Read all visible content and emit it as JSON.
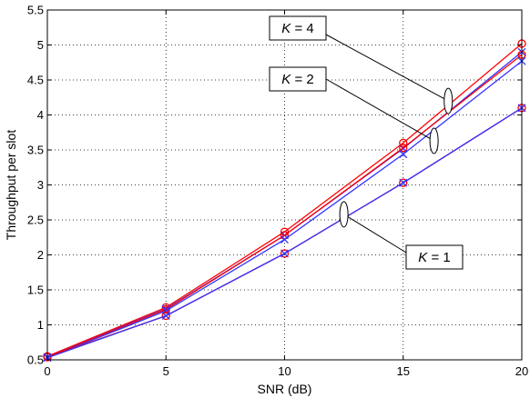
{
  "chart_data": {
    "type": "line",
    "title": "",
    "xlabel": "SNR (dB)",
    "ylabel": "Throughput per slot",
    "xlim": [
      0,
      20
    ],
    "ylim": [
      0.5,
      5.5
    ],
    "xticks": [
      0,
      5,
      10,
      15,
      20
    ],
    "xtick_labels": [
      "0",
      "5",
      "10",
      "15",
      "20"
    ],
    "yticks": [
      0.5,
      1,
      1.5,
      2,
      2.5,
      3,
      3.5,
      4,
      4.5,
      5,
      5.5
    ],
    "ytick_labels": [
      "0.5",
      "1",
      "1.5",
      "2",
      "2.5",
      "3",
      "3.5",
      "4",
      "4.5",
      "5",
      "5.5"
    ],
    "grid": true,
    "x": [
      0,
      5,
      10,
      15,
      20
    ],
    "series": [
      {
        "group": "K = 4",
        "marker": "circle",
        "color": "#ff0000",
        "values": [
          0.55,
          1.25,
          2.33,
          3.6,
          5.02
        ]
      },
      {
        "group": "K = 4",
        "marker": "cross",
        "color": "#3333ff",
        "values": [
          0.54,
          1.23,
          2.28,
          3.52,
          4.9
        ]
      },
      {
        "group": "K = 2",
        "marker": "circle",
        "color": "#ff0000",
        "values": [
          0.54,
          1.22,
          2.28,
          3.53,
          4.86
        ]
      },
      {
        "group": "K = 2",
        "marker": "cross",
        "color": "#3333ff",
        "values": [
          0.53,
          1.2,
          2.22,
          3.44,
          4.77
        ]
      },
      {
        "group": "K = 1",
        "marker": "circle",
        "color": "#ff0000",
        "values": [
          0.54,
          1.13,
          2.02,
          3.03,
          4.1
        ]
      },
      {
        "group": "K = 1",
        "marker": "cross",
        "color": "#3333ff",
        "values": [
          0.53,
          1.13,
          2.02,
          3.03,
          4.1
        ]
      }
    ],
    "annotations": [
      {
        "label": "K = 4",
        "italic_part": "K",
        "rest": " = 4",
        "target": [
          16.9,
          4.2
        ]
      },
      {
        "label": "K = 2",
        "italic_part": "K",
        "rest": " = 2",
        "target": [
          16.3,
          3.63
        ]
      },
      {
        "label": "K = 1",
        "italic_part": "K",
        "rest": " = 1",
        "target": [
          12.5,
          2.58
        ]
      }
    ]
  }
}
